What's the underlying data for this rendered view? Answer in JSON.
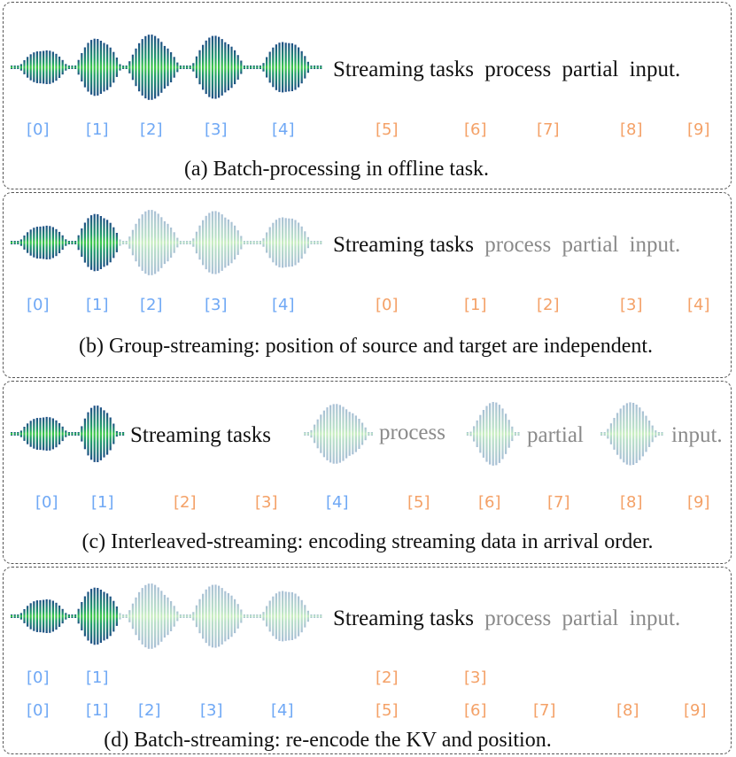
{
  "colors": {
    "source_index": "#6fa8f5",
    "target_index": "#f4a167",
    "text_active": "#111111",
    "text_pending": "#8a8a8a"
  },
  "panels": {
    "a": {
      "sentence": [
        "Streaming tasks",
        "process",
        "partial",
        "input."
      ],
      "source_indices": [
        "[0]",
        "[1]",
        "[2]",
        "[3]",
        "[4]"
      ],
      "target_indices": [
        "[5]",
        "[6]",
        "[7]",
        "[8]",
        "[9]"
      ],
      "caption": "(a) Batch-processing in offline task."
    },
    "b": {
      "sentence": [
        "Streaming tasks",
        "process",
        "partial",
        "input."
      ],
      "source_indices": [
        "[0]",
        "[1]",
        "[2]",
        "[3]",
        "[4]"
      ],
      "target_indices": [
        "[0]",
        "[1]",
        "[2]",
        "[3]",
        "[4]"
      ],
      "caption": "(b) Group-streaming: position of source and target are independent."
    },
    "c": {
      "sentence": [
        "Streaming tasks",
        "process",
        "partial",
        "input."
      ],
      "indices": [
        "[0]",
        "[1]",
        "[2]",
        "[3]",
        "[4]",
        "[5]",
        "[6]",
        "[7]",
        "[8]",
        "[9]"
      ],
      "caption": "(c) Interleaved-streaming:  encoding streaming data in arrival order."
    },
    "d": {
      "sentence": [
        "Streaming tasks",
        "process",
        "partial",
        "input."
      ],
      "row1_source": [
        "[0]",
        "[1]"
      ],
      "row1_target": [
        "[2]",
        "[3]"
      ],
      "row2_source": [
        "[0]",
        "[1]",
        "[2]",
        "[3]",
        "[4]"
      ],
      "row2_target": [
        "[5]",
        "[6]",
        "[7]",
        "[8]",
        "[9]"
      ],
      "caption": "(d) Batch-streaming: re-encode the KV and position."
    }
  }
}
